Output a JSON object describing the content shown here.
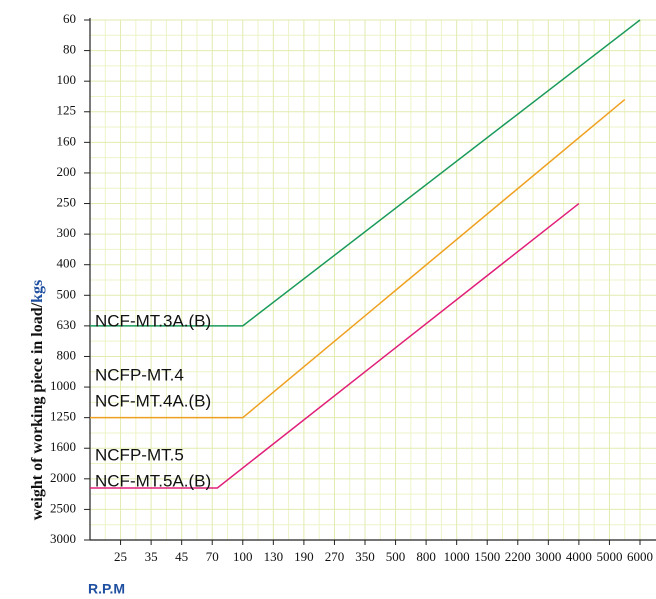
{
  "chart_data": {
    "type": "line",
    "ylabel": "weight of working piece in load/",
    "ylabel_unit": "kgs",
    "xlabel": "R.P.M",
    "xlim": [
      16,
      6000
    ],
    "xticks": [
      25,
      35,
      45,
      70,
      100,
      130,
      190,
      270,
      350,
      500,
      800,
      1000,
      1500,
      2200,
      3000,
      4000,
      5000,
      6000
    ],
    "ylim": [
      60,
      3000
    ],
    "yticks": [
      60,
      80,
      100,
      125,
      160,
      200,
      250,
      300,
      400,
      500,
      630,
      800,
      1000,
      1250,
      1600,
      2000,
      2500,
      3000
    ],
    "y_inverted": true,
    "grid": true,
    "series": [
      {
        "labels": [
          "NCF-MT.3A.(B)"
        ],
        "color": "#1a9a5a",
        "x": [
          16,
          100,
          6000
        ],
        "values": [
          630,
          630,
          60
        ]
      },
      {
        "labels": [
          "NCFP-MT.4",
          "NCF-MT.4A.(B)"
        ],
        "color": "#f0a020",
        "x": [
          16,
          100,
          5500
        ],
        "values": [
          1250,
          1250,
          115
        ]
      },
      {
        "labels": [
          "NCFP-MT.5",
          "NCF-MT.5A.(B)"
        ],
        "color": "#e0207a",
        "x": [
          16,
          75,
          4000
        ],
        "values": [
          2150,
          2150,
          250
        ]
      }
    ]
  }
}
